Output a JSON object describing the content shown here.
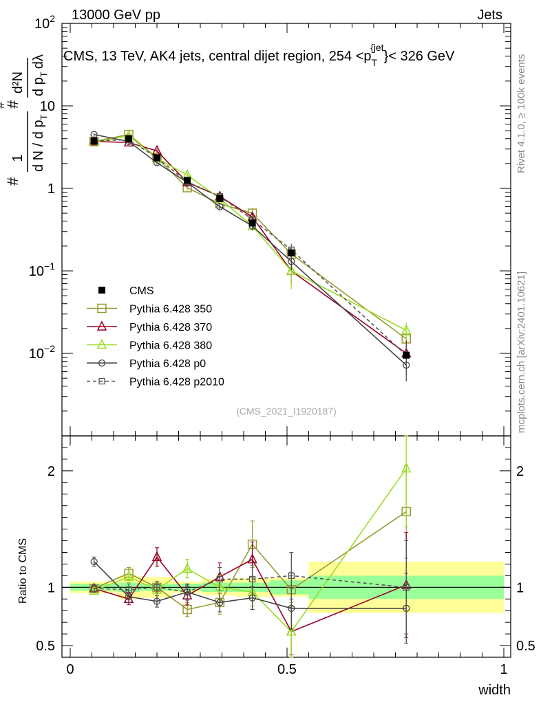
{
  "header": {
    "left": "13000 GeV pp",
    "right": "Jets"
  },
  "side_labels": {
    "rivet": "Rivet 4.1.0, ≥ 100k events",
    "mcplots": "mcplots.cern.ch [arXiv:2401.10621]"
  },
  "chart_data": {
    "type": "line",
    "title": "CMS, 13 TeV, AK4 jets, central dijet region, 254 <p_T^{jet}< 326 GeV",
    "title_parts": {
      "main": "CMS, 13 TeV, AK4 jets, central dijet region, 254 <p",
      "sub": "T",
      "sup": "{jet",
      "tail": "}< 326 GeV"
    },
    "analysis_tag": "(CMS_2021_I1920187)",
    "xlabel": "width",
    "ylabel_main": "1/dN/dp_T #d^2N/dp_T dλ",
    "ylabel_parts": {
      "frac1_num": "1",
      "frac1_den": "d N / d p",
      "frac1_den_sub": "T",
      "hash": "#",
      "frac2_num": "d²N",
      "frac2_den": "d p",
      "frac2_den_sub": "T",
      "frac2_tail": "dλ"
    },
    "ylabel_ratio": "Ratio to CMS",
    "xlim": [
      0,
      1
    ],
    "ylim_main": [
      0.001,
      100
    ],
    "ylim_ratio": [
      0.4,
      2.3
    ],
    "x_ticks": [
      "0",
      "0.5",
      "1"
    ],
    "y_ticks_main": [
      {
        "base": "10",
        "exp": "−2"
      },
      {
        "base": "10",
        "exp": "−1"
      },
      {
        "base": "1",
        "exp": ""
      },
      {
        "base": "10",
        "exp": ""
      },
      {
        "base": "10",
        "exp": "2"
      }
    ],
    "y_ticks_ratio": [
      "0.5",
      "1",
      "2"
    ],
    "x": [
      0.055,
      0.135,
      0.2,
      0.27,
      0.345,
      0.42,
      0.51,
      0.775
    ],
    "bins": [
      [
        0.0,
        0.11
      ],
      [
        0.11,
        0.16
      ],
      [
        0.16,
        0.235
      ],
      [
        0.235,
        0.305
      ],
      [
        0.305,
        0.38
      ],
      [
        0.38,
        0.46
      ],
      [
        0.46,
        0.55
      ],
      [
        0.55,
        1.0
      ]
    ],
    "data": {
      "name": "CMS",
      "values": [
        3.75,
        4.0,
        2.35,
        1.25,
        0.75,
        0.38,
        0.165,
        0.0095
      ],
      "ratio_band_stat": [
        0.03,
        0.04,
        0.03,
        0.03,
        0.04,
        0.04,
        0.06,
        0.1
      ],
      "ratio_band_total": [
        0.05,
        0.1,
        0.09,
        0.05,
        0.07,
        0.08,
        0.08,
        0.22
      ]
    },
    "series": [
      {
        "name": "Pythia 6.428 350",
        "color": "#999933",
        "marker": "square-open",
        "dash": false,
        "values": [
          3.7,
          4.5,
          2.35,
          1.02,
          0.65,
          0.5,
          0.16,
          0.015
        ],
        "ratio": [
          0.99,
          1.12,
          1.0,
          0.81,
          0.87,
          1.37,
          0.98,
          1.65
        ],
        "ratio_err": [
          0.03,
          0.05,
          0.05,
          0.06,
          0.1,
          0.2,
          0.15,
          0.4
        ]
      },
      {
        "name": "Pythia 6.428 370",
        "color": "#990022",
        "marker": "triangle-open",
        "dash": false,
        "values": [
          3.7,
          3.6,
          2.85,
          1.18,
          0.8,
          0.45,
          0.1,
          0.01
        ],
        "ratio": [
          0.99,
          0.9,
          1.26,
          0.93,
          1.09,
          1.24,
          0.62,
          1.02
        ],
        "ratio_err": [
          0.03,
          0.05,
          0.08,
          0.08,
          0.12,
          0.15,
          0.2,
          0.45
        ]
      },
      {
        "name": "Pythia 6.428 380",
        "color": "#99dd22",
        "marker": "triangle-open",
        "dash": false,
        "values": [
          3.6,
          4.35,
          2.3,
          1.45,
          0.75,
          0.35,
          0.1,
          0.019
        ],
        "ratio": [
          0.97,
          1.09,
          0.98,
          1.16,
          1.0,
          0.96,
          0.62,
          2.02
        ],
        "ratio_err": [
          0.03,
          0.05,
          0.05,
          0.08,
          0.1,
          0.12,
          0.25,
          0.5
        ]
      },
      {
        "name": "Pythia 6.428 p0",
        "color": "#444444",
        "marker": "circle-open",
        "dash": false,
        "values": [
          4.5,
          3.7,
          2.05,
          1.18,
          0.6,
          0.35,
          0.13,
          0.0072
        ],
        "ratio": [
          1.22,
          0.92,
          0.88,
          0.96,
          0.87,
          0.91,
          0.82,
          0.82
        ],
        "ratio_err": [
          0.04,
          0.05,
          0.05,
          0.07,
          0.08,
          0.1,
          0.18,
          0.3
        ]
      },
      {
        "name": "Pythia 6.428 p2010",
        "color": "#555555",
        "marker": "square-open-small",
        "dash": true,
        "values": [
          3.75,
          3.9,
          2.35,
          1.2,
          0.8,
          0.42,
          0.18,
          0.0095
        ],
        "ratio": [
          0.99,
          0.98,
          1.0,
          0.96,
          1.07,
          1.07,
          1.1,
          1.0
        ],
        "ratio_err": [
          0.03,
          0.05,
          0.05,
          0.06,
          0.1,
          0.12,
          0.2,
          0.4
        ]
      }
    ],
    "legend_position": "lower-left"
  }
}
